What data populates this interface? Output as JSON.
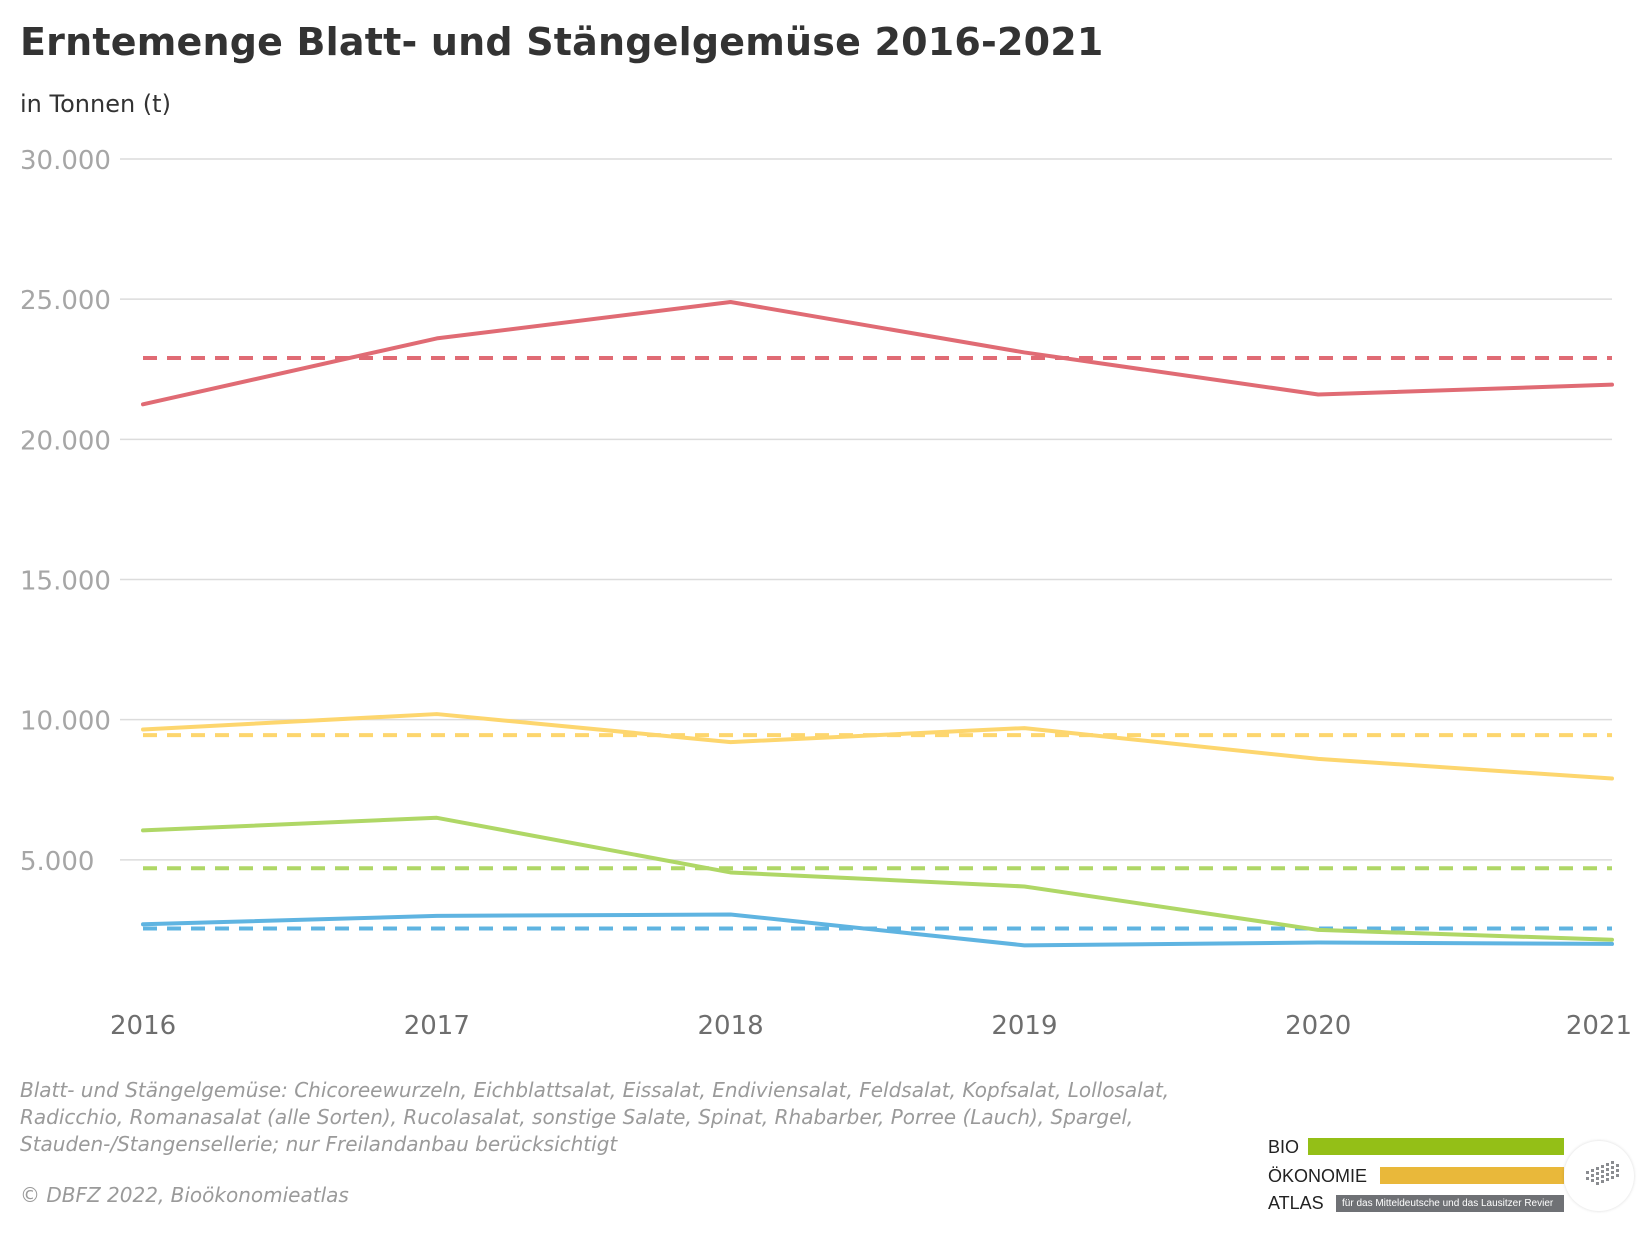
{
  "title": "Erntemenge Blatt- und Stängelgemüse 2016-2021",
  "subtitle": "in Tonnen (t)",
  "footnote": "Blatt- und Stängelgemüse: Chicoreewurzeln, Eichblattsalat, Eissalat, Endiviensalat, Feldsalat, Kopfsalat, Lollosalat, Radicchio, Romanasalat (alle Sorten), Rucolasalat, sonstige Salate, Spinat, Rhabarber, Porree (Lauch), Spargel, Stauden-/Stangensellerie; nur Freilandanbau berücksichtigt",
  "copyright": "© DBFZ 2022, Bioökonomieatlas",
  "logo": {
    "line1": "BIO",
    "line2": "ÖKONOMIE",
    "line3": "ATLAS",
    "tagline": "für das Mitteldeutsche und das Lausitzer Revier",
    "colors": {
      "green": "#94bf17",
      "yellow": "#e9b83a",
      "gray": "#6f7175"
    }
  },
  "chart_data": {
    "type": "line",
    "x": [
      2016,
      2017,
      2018,
      2019,
      2020,
      2021
    ],
    "x_tick_labels": [
      "2016",
      "2017",
      "2018",
      "2019",
      "2020",
      "2021"
    ],
    "ylim": [
      0,
      30000
    ],
    "y_ticks": [
      5000,
      10000,
      15000,
      20000,
      25000,
      30000
    ],
    "y_tick_labels": [
      "5.000",
      "10.000",
      "15.000",
      "20.000",
      "25.000",
      "30.000"
    ],
    "grid": true,
    "legend": "none",
    "series": [
      {
        "color": "#e06b74",
        "style": "solid",
        "values": [
          21250,
          23600,
          24900,
          23100,
          21600,
          21950
        ]
      },
      {
        "color": "#e06b74",
        "style": "dashed",
        "values": [
          22900,
          22900,
          22900,
          22900,
          22900,
          22900
        ]
      },
      {
        "color": "#fdd66e",
        "style": "solid",
        "values": [
          9650,
          10200,
          9200,
          9700,
          8600,
          7900
        ]
      },
      {
        "color": "#fdd66e",
        "style": "dashed",
        "values": [
          9450,
          9450,
          9450,
          9450,
          9450,
          9450
        ]
      },
      {
        "color": "#afd766",
        "style": "solid",
        "values": [
          6050,
          6500,
          4550,
          4050,
          2500,
          2150
        ]
      },
      {
        "color": "#afd766",
        "style": "dashed",
        "values": [
          4700,
          4700,
          4700,
          4700,
          4700,
          4700
        ]
      },
      {
        "color": "#5fb4e1",
        "style": "solid",
        "values": [
          2700,
          3000,
          3050,
          1950,
          2050,
          2000
        ]
      },
      {
        "color": "#5fb4e1",
        "style": "dashed",
        "values": [
          2550,
          2550,
          2550,
          2550,
          2550,
          2550
        ]
      }
    ]
  }
}
